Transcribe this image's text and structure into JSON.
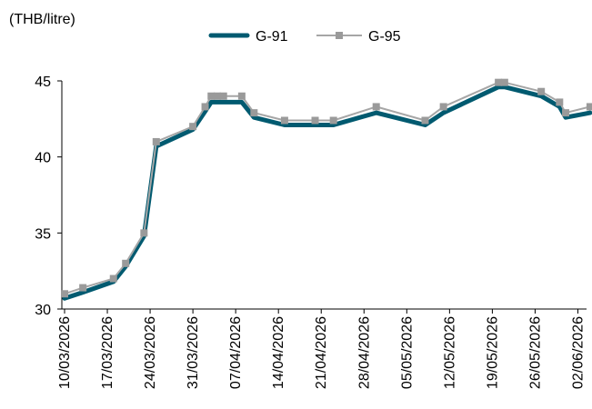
{
  "chart_data": {
    "type": "line",
    "title": "",
    "unit_label": "(THB/litre)",
    "xlabel": "",
    "ylabel": "",
    "ylim": [
      30,
      45
    ],
    "yticks": [
      30,
      35,
      40,
      45
    ],
    "grid": false,
    "legend_position": "top-center",
    "x_tick_labels": [
      "10/03/2026",
      "17/03/2026",
      "24/03/2026",
      "31/03/2026",
      "07/04/2026",
      "14/04/2026",
      "21/04/2026",
      "28/04/2026",
      "05/05/2026",
      "12/05/2026",
      "19/05/2026",
      "26/05/2026",
      "02/06/2026"
    ],
    "x": [
      "2026-03-10",
      "2026-03-13",
      "2026-03-18",
      "2026-03-20",
      "2026-03-23",
      "2026-03-25",
      "2026-03-31",
      "2026-04-02",
      "2026-04-03",
      "2026-04-04",
      "2026-04-05",
      "2026-04-08",
      "2026-04-10",
      "2026-04-15",
      "2026-04-20",
      "2026-04-23",
      "2026-04-30",
      "2026-05-08",
      "2026-05-11",
      "2026-05-20",
      "2026-05-21",
      "2026-05-27",
      "2026-05-30",
      "2026-05-31",
      "2026-06-04"
    ],
    "series": [
      {
        "name": "G-91",
        "color": "#005a70",
        "marker": "none",
        "values": [
          30.7,
          31.1,
          31.8,
          32.8,
          34.8,
          40.7,
          41.8,
          43.0,
          43.6,
          43.6,
          43.6,
          43.6,
          42.6,
          42.1,
          42.1,
          42.1,
          42.9,
          42.1,
          42.9,
          44.6,
          44.6,
          44.0,
          43.3,
          42.6,
          42.9
        ]
      },
      {
        "name": "G-95",
        "color": "#a6a6a6",
        "marker": "square",
        "marker_color": "#9a9a9a",
        "values": [
          31.0,
          31.4,
          32.0,
          33.0,
          35.0,
          41.0,
          42.0,
          43.3,
          44.0,
          44.0,
          44.0,
          44.0,
          42.9,
          42.4,
          42.4,
          42.4,
          43.3,
          42.4,
          43.3,
          44.9,
          44.9,
          44.3,
          43.6,
          42.9,
          43.3
        ]
      }
    ]
  }
}
